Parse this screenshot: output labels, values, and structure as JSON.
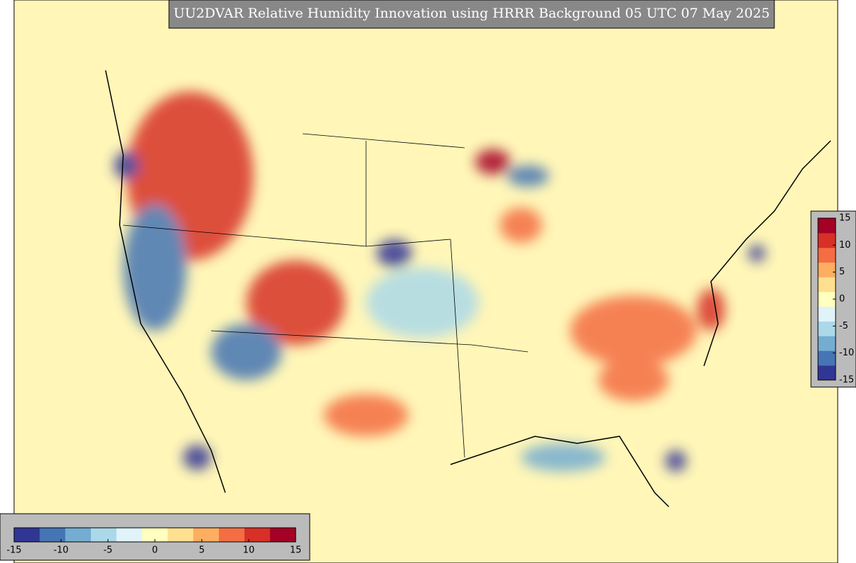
{
  "title": "UU2DVAR Relative Humidity Innovation using HRRR Background 05 UTC 07 May 2025",
  "colorbars": [
    {
      "orientation": "horizontal",
      "limits": [
        -15,
        15
      ],
      "ticks": [
        -15,
        -10,
        -5,
        0,
        5,
        10,
        15
      ]
    },
    {
      "orientation": "vertical",
      "limits": [
        -15,
        15
      ],
      "ticks": [
        15,
        10,
        5,
        0,
        -5,
        -10,
        -15
      ]
    }
  ],
  "colormap": [
    "#313695",
    "#4575b4",
    "#74add1",
    "#abd9e9",
    "#e0f3f8",
    "#ffffbf",
    "#fee090",
    "#fdae61",
    "#f46d43",
    "#d73027",
    "#a50026"
  ]
}
